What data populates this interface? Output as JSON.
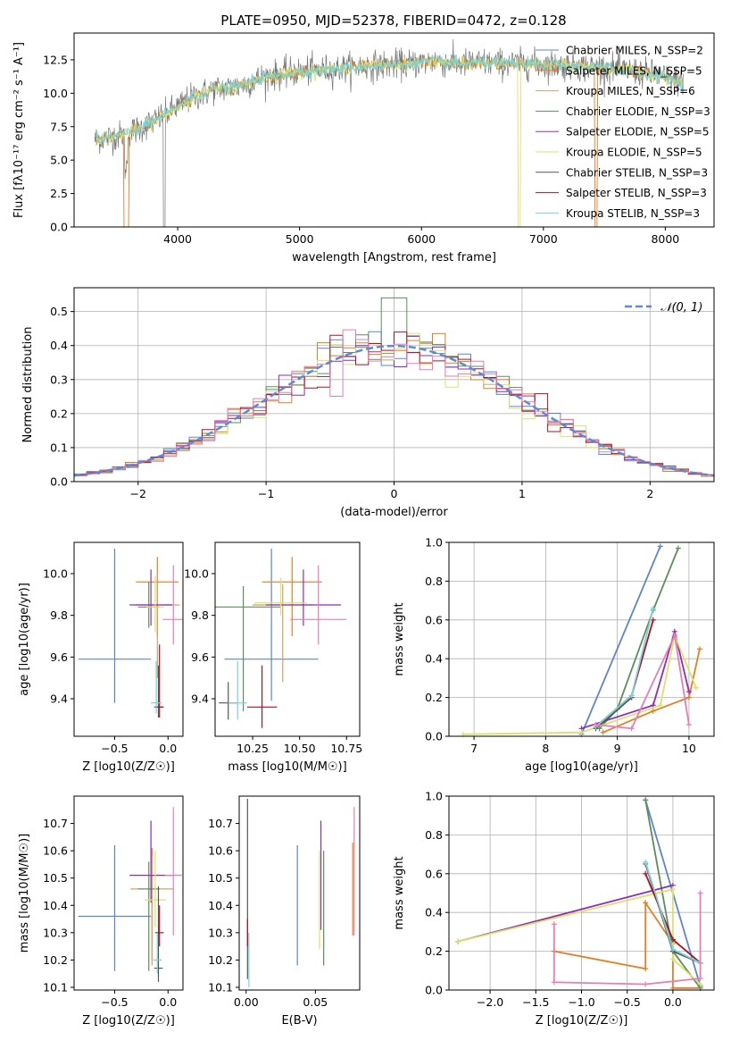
{
  "colors": {
    "Chabrier MILES": "#5b84d6",
    "Salpeter MILES": "#e67e22",
    "Kroupa MILES": "#d4a06a",
    "Chabrier ELODIE": "#5a8f5a",
    "Salpeter ELODIE": "#8e2db5",
    "Kroupa ELODIE": "#d9e36a",
    "Chabrier STELIB": "#555555",
    "Salpeter STELIB": "#b01020",
    "Kroupa STELIB": "#78d2d8",
    "extra_pink": "#e67eb5"
  },
  "chart_data": [
    {
      "type": "line",
      "title": "PLATE=0950, MJD=52378, FIBERID=0472, z=0.128",
      "xlabel": "wavelength [Angstrom, rest frame]",
      "ylabel": "Flux [fλ10⁻¹⁷ erg cm⁻² s⁻¹ A⁻¹]",
      "xlim": [
        3150,
        8400
      ],
      "ylim": [
        0,
        14.5
      ],
      "xticks": [
        4000,
        5000,
        6000,
        7000,
        8000
      ],
      "yticks": [
        0.0,
        2.5,
        5.0,
        7.5,
        10.0,
        12.5
      ],
      "legend": "top-right",
      "series": [
        {
          "name": "Chabrier MILES, N_SSP=2",
          "color_key": "Chabrier MILES"
        },
        {
          "name": "Salpeter MILES, N_SSP=5",
          "color_key": "Salpeter MILES"
        },
        {
          "name": "Kroupa MILES, N_SSP=6",
          "color_key": "Kroupa MILES"
        },
        {
          "name": "Chabrier ELODIE, N_SSP=3",
          "color_key": "Chabrier ELODIE"
        },
        {
          "name": "Salpeter ELODIE, N_SSP=5",
          "color_key": "Salpeter ELODIE"
        },
        {
          "name": "Kroupa ELODIE, N_SSP=5",
          "color_key": "Kroupa ELODIE"
        },
        {
          "name": "Chabrier STELIB, N_SSP=3",
          "color_key": "Chabrier STELIB"
        },
        {
          "name": "Salpeter STELIB, N_SSP=3",
          "color_key": "Salpeter STELIB"
        },
        {
          "name": "Kroupa STELIB, N_SSP=3",
          "color_key": "Kroupa STELIB"
        }
      ],
      "continuum": [
        [
          3300,
          6.5
        ],
        [
          3500,
          6.8
        ],
        [
          3700,
          7.4
        ],
        [
          3900,
          8.4
        ],
        [
          4100,
          9.6
        ],
        [
          4300,
          10.3
        ],
        [
          4500,
          10.5
        ],
        [
          4700,
          11.2
        ],
        [
          4900,
          11.5
        ],
        [
          5100,
          11.7
        ],
        [
          5300,
          11.8
        ],
        [
          5500,
          12.0
        ],
        [
          5700,
          12.1
        ],
        [
          5900,
          12.2
        ],
        [
          6100,
          12.4
        ],
        [
          6300,
          12.2
        ],
        [
          6500,
          12.3
        ],
        [
          6700,
          12.2
        ],
        [
          6900,
          12.2
        ],
        [
          7100,
          12.1
        ],
        [
          7300,
          12.0
        ],
        [
          7500,
          11.9
        ],
        [
          7700,
          11.7
        ],
        [
          7900,
          11.4
        ],
        [
          8150,
          10.8
        ]
      ]
    },
    {
      "type": "histogram",
      "xlabel": "(data-model)/error",
      "ylabel": "Normed distribution",
      "xlim": [
        -2.5,
        2.5
      ],
      "ylim": [
        0,
        0.57
      ],
      "xticks": [
        -2,
        -1,
        0,
        1,
        2
      ],
      "yticks": [
        0.0,
        0.1,
        0.2,
        0.3,
        0.4,
        0.5
      ],
      "legend_label": "𝒩(0, 1)",
      "legend": "top-right",
      "gaussian": {
        "mu": 0,
        "sigma": 1
      }
    },
    {
      "type": "errorbar",
      "xlabel": "Z [log10(Z/Z☉)]",
      "ylabel": "age  [log10(age/yr)]",
      "xlim": [
        -0.88,
        0.14
      ],
      "ylim": [
        9.22,
        10.15
      ],
      "xticks": [
        -0.5,
        0.0
      ],
      "yticks": [
        9.4,
        9.6,
        9.8,
        10.0
      ],
      "points": [
        {
          "c": "Chabrier MILES",
          "x": -0.5,
          "y": 9.59,
          "xerr": 0.34,
          "yerr": [
            0.21,
            0.53
          ]
        },
        {
          "c": "Salpeter MILES",
          "x": -0.1,
          "y": 9.96,
          "xerr": 0.2,
          "yerr": [
            0.26,
            0.12
          ]
        },
        {
          "c": "Kroupa MILES",
          "x": -0.1,
          "y": 9.85,
          "xerr": 0.21,
          "yerr": [
            0.35,
            0.15
          ]
        },
        {
          "c": "Chabrier ELODIE",
          "x": -0.18,
          "y": 9.84,
          "xerr": 0.1,
          "yerr": [
            0.1,
            0.12
          ]
        },
        {
          "c": "Salpeter ELODIE",
          "x": -0.16,
          "y": 9.85,
          "xerr": 0.2,
          "yerr": [
            0.1,
            0.17
          ]
        },
        {
          "c": "Kroupa ELODIE",
          "x": -0.12,
          "y": 9.84,
          "xerr": 0.08,
          "yerr": [
            0.12,
            0.15
          ]
        },
        {
          "c": "Chabrier STELIB",
          "x": -0.09,
          "y": 9.36,
          "xerr": 0.04,
          "yerr": [
            0.05,
            0.2
          ]
        },
        {
          "c": "Salpeter STELIB",
          "x": -0.08,
          "y": 9.36,
          "xerr": 0.04,
          "yerr": [
            0.05,
            0.3
          ]
        },
        {
          "c": "Kroupa STELIB",
          "x": -0.11,
          "y": 9.38,
          "xerr": 0.05,
          "yerr": [
            0.05,
            0.2
          ]
        },
        {
          "c": "extra_pink",
          "x": 0.05,
          "y": 9.78,
          "xerr": 0.1,
          "yerr": [
            0.12,
            0.26
          ]
        }
      ]
    },
    {
      "type": "errorbar",
      "xlabel": "mass [log10(M/M☉)]",
      "ylabel": "",
      "xlim": [
        10.05,
        10.82
      ],
      "ylim": [
        9.22,
        10.15
      ],
      "xticks": [
        10.25,
        10.5,
        10.75
      ],
      "yticks": [
        9.4,
        9.6,
        9.8,
        10.0
      ],
      "points": [
        {
          "c": "Chabrier MILES",
          "x": 10.35,
          "y": 9.59,
          "xerr": 0.25,
          "yerr": [
            0.2,
            0.53
          ]
        },
        {
          "c": "Salpeter MILES",
          "x": 10.46,
          "y": 9.96,
          "xerr": 0.16,
          "yerr": [
            0.26,
            0.12
          ]
        },
        {
          "c": "Kroupa MILES",
          "x": 10.41,
          "y": 9.85,
          "xerr": 0.16,
          "yerr": [
            0.37,
            0.1
          ]
        },
        {
          "c": "Chabrier ELODIE",
          "x": 10.2,
          "y": 9.84,
          "xerr": 0.2,
          "yerr": [
            0.5,
            0.1
          ]
        },
        {
          "c": "Salpeter ELODIE",
          "x": 10.52,
          "y": 9.85,
          "xerr": 0.2,
          "yerr": [
            0.1,
            0.17
          ]
        },
        {
          "c": "Kroupa ELODIE",
          "x": 10.4,
          "y": 9.86,
          "xerr": 0.14,
          "yerr": [
            0.06,
            0.12
          ]
        },
        {
          "c": "Chabrier STELIB",
          "x": 10.12,
          "y": 9.38,
          "xerr": 0.05,
          "yerr": [
            0.08,
            0.1
          ]
        },
        {
          "c": "Salpeter STELIB",
          "x": 10.3,
          "y": 9.36,
          "xerr": 0.08,
          "yerr": [
            0.1,
            0.2
          ]
        },
        {
          "c": "Kroupa STELIB",
          "x": 10.17,
          "y": 9.38,
          "xerr": 0.05,
          "yerr": [
            0.08,
            0.2
          ]
        },
        {
          "c": "extra_pink",
          "x": 10.6,
          "y": 9.78,
          "xerr": 0.15,
          "yerr": [
            0.12,
            0.26
          ]
        }
      ]
    },
    {
      "type": "line",
      "xlabel": "age  [log10(age/yr)]",
      "ylabel": "mass weight",
      "xlim": [
        6.65,
        10.35
      ],
      "ylim": [
        0,
        1.0
      ],
      "xticks": [
        7,
        8,
        9,
        10
      ],
      "yticks": [
        0.0,
        0.2,
        0.4,
        0.6,
        0.8,
        1.0
      ],
      "series": [
        {
          "c": "Chabrier MILES",
          "x": [
            8.5,
            9.6
          ],
          "y": [
            0.01,
            0.98
          ]
        },
        {
          "c": "Salpeter MILES",
          "x": [
            8.8,
            9.5,
            10.0,
            10.15
          ],
          "y": [
            0.02,
            0.13,
            0.2,
            0.45
          ]
        },
        {
          "c": "Chabrier ELODIE",
          "x": [
            8.75,
            9.0,
            9.5,
            9.85
          ],
          "y": [
            0.04,
            0.14,
            0.65,
            0.97
          ]
        },
        {
          "c": "Salpeter ELODIE",
          "x": [
            8.5,
            9.5,
            9.8,
            10.0
          ],
          "y": [
            0.04,
            0.16,
            0.54,
            0.23
          ]
        },
        {
          "c": "Kroupa ELODIE",
          "x": [
            6.85,
            8.5,
            9.6,
            9.8,
            10.1
          ],
          "y": [
            0.01,
            0.02,
            0.16,
            0.52,
            0.25
          ]
        },
        {
          "c": "Chabrier STELIB",
          "x": [
            8.7,
            9.2
          ],
          "y": [
            0.04,
            0.2
          ]
        },
        {
          "c": "Salpeter STELIB",
          "x": [
            8.7,
            9.2,
            9.5
          ],
          "y": [
            0.05,
            0.21,
            0.6
          ]
        },
        {
          "c": "Kroupa STELIB",
          "x": [
            8.7,
            9.2,
            9.5
          ],
          "y": [
            0.05,
            0.21,
            0.66
          ]
        },
        {
          "c": "extra_pink",
          "x": [
            8.7,
            9.2,
            9.8,
            10.0
          ],
          "y": [
            0.06,
            0.04,
            0.52,
            0.06
          ]
        }
      ]
    },
    {
      "type": "errorbar",
      "xlabel": "Z [log10(Z/Z☉)]",
      "ylabel": "mass [log10(M/M☉)]",
      "xlim": [
        -0.88,
        0.14
      ],
      "ylim": [
        10.09,
        10.8
      ],
      "xticks": [
        -0.5,
        0.0
      ],
      "yticks": [
        10.1,
        10.2,
        10.3,
        10.4,
        10.5,
        10.6,
        10.7
      ],
      "points": [
        {
          "c": "Chabrier MILES",
          "x": -0.5,
          "y": 10.36,
          "xerr": 0.34,
          "yerr": [
            0.2,
            0.26
          ]
        },
        {
          "c": "Salpeter MILES",
          "x": -0.15,
          "y": 10.46,
          "xerr": 0.2,
          "yerr": [
            0.26,
            0.15
          ]
        },
        {
          "c": "Kroupa MILES",
          "x": -0.15,
          "y": 10.46,
          "xerr": 0.2,
          "yerr": [
            0.28,
            0.12
          ]
        },
        {
          "c": "Chabrier ELODIE",
          "x": -0.18,
          "y": 10.46,
          "xerr": 0.1,
          "yerr": [
            0.3,
            0.1
          ]
        },
        {
          "c": "Salpeter ELODIE",
          "x": -0.16,
          "y": 10.51,
          "xerr": 0.2,
          "yerr": [
            0.1,
            0.2
          ]
        },
        {
          "c": "Kroupa ELODIE",
          "x": -0.12,
          "y": 10.42,
          "xerr": 0.1,
          "yerr": [
            0.1,
            0.18
          ]
        },
        {
          "c": "Chabrier STELIB",
          "x": -0.09,
          "y": 10.17,
          "xerr": 0.04,
          "yerr": [
            0.05,
            0.3
          ]
        },
        {
          "c": "Salpeter STELIB",
          "x": -0.08,
          "y": 10.3,
          "xerr": 0.04,
          "yerr": [
            0.05,
            0.1
          ]
        },
        {
          "c": "Kroupa STELIB",
          "x": -0.1,
          "y": 10.2,
          "xerr": 0.04,
          "yerr": [
            0.05,
            0.1
          ]
        },
        {
          "c": "extra_pink",
          "x": 0.05,
          "y": 10.51,
          "xerr": 0.08,
          "yerr": [
            0.22,
            0.25
          ]
        }
      ]
    },
    {
      "type": "errorbar",
      "xlabel": "E(B-V)",
      "ylabel": "",
      "xlim": [
        -0.005,
        0.082
      ],
      "ylim": [
        10.09,
        10.8
      ],
      "xticks": [
        0.0,
        0.05
      ],
      "yticks": [
        10.1,
        10.2,
        10.3,
        10.4,
        10.5,
        10.6,
        10.7
      ],
      "points": [
        {
          "c": "Chabrier MILES",
          "x": 0.037,
          "y": 10.4,
          "xerr": 0,
          "yerr": [
            0.22,
            0.22
          ]
        },
        {
          "c": "Salpeter MILES",
          "x": 0.077,
          "y": 10.46,
          "xerr": 0,
          "yerr": [
            0.17,
            0.17
          ]
        },
        {
          "c": "Salpeter ELODIE",
          "x": 0.054,
          "y": 10.51,
          "xerr": 0,
          "yerr": [
            0.2,
            0.2
          ]
        },
        {
          "c": "Kroupa ELODIE",
          "x": 0.053,
          "y": 10.42,
          "xerr": 0,
          "yerr": [
            0.18,
            0.18
          ]
        },
        {
          "c": "Chabrier ELODIE",
          "x": 0.056,
          "y": 10.4,
          "xerr": 0,
          "yerr": [
            0.22,
            0.2
          ]
        },
        {
          "c": "Chabrier STELIB",
          "x": 0.001,
          "y": 10.45,
          "xerr": 0,
          "yerr": [
            0.32,
            0.34
          ]
        },
        {
          "c": "Salpeter STELIB",
          "x": 0.001,
          "y": 10.3,
          "xerr": 0,
          "yerr": [
            0.05,
            0.05
          ]
        },
        {
          "c": "Kroupa STELIB",
          "x": 0.002,
          "y": 10.2,
          "xerr": 0,
          "yerr": [
            0.1,
            0.1
          ]
        },
        {
          "c": "extra_pink",
          "x": 0.078,
          "y": 10.51,
          "xerr": 0,
          "yerr": [
            0.22,
            0.25
          ]
        }
      ]
    },
    {
      "type": "line",
      "xlabel": "Z [log10(Z/Z☉)]",
      "ylabel": "mass weight",
      "xlim": [
        -2.45,
        0.45
      ],
      "ylim": [
        0,
        1.0
      ],
      "xticks": [
        -2.0,
        -1.5,
        -1.0,
        -0.5,
        0.0
      ],
      "yticks": [
        0.0,
        0.2,
        0.4,
        0.6,
        0.8,
        1.0
      ],
      "series": [
        {
          "c": "Chabrier MILES",
          "x": [
            -0.3,
            0.3
          ],
          "y": [
            0.98,
            0.02
          ]
        },
        {
          "c": "Salpeter MILES",
          "x": [
            -1.3,
            -0.3,
            -0.3,
            0.0,
            0.0,
            0.3
          ],
          "y": [
            0.2,
            0.11,
            0.45,
            0.24,
            0.01,
            0.01
          ]
        },
        {
          "c": "Chabrier ELODIE",
          "x": [
            -0.3,
            0.0,
            0.3
          ],
          "y": [
            0.98,
            0.2,
            0.01
          ]
        },
        {
          "c": "Salpeter ELODIE",
          "x": [
            -2.35,
            0.0
          ],
          "y": [
            0.25,
            0.54
          ]
        },
        {
          "c": "Kroupa ELODIE",
          "x": [
            -2.35,
            0.0,
            0.0,
            0.3
          ],
          "y": [
            0.25,
            0.52,
            0.16,
            0.03
          ]
        },
        {
          "c": "Chabrier STELIB",
          "x": [
            -0.3,
            0.0,
            0.3
          ],
          "y": [
            0.65,
            0.2,
            0.14
          ]
        },
        {
          "c": "Salpeter STELIB",
          "x": [
            -0.3,
            0.0,
            0.3
          ],
          "y": [
            0.6,
            0.26,
            0.14
          ]
        },
        {
          "c": "Kroupa STELIB",
          "x": [
            -0.3,
            0.0,
            0.3
          ],
          "y": [
            0.66,
            0.21,
            0.14
          ]
        },
        {
          "c": "extra_pink",
          "x": [
            -1.3,
            -1.3,
            -0.3,
            0.3,
            0.3
          ],
          "y": [
            0.34,
            0.04,
            0.03,
            0.06,
            0.5
          ]
        }
      ]
    }
  ]
}
